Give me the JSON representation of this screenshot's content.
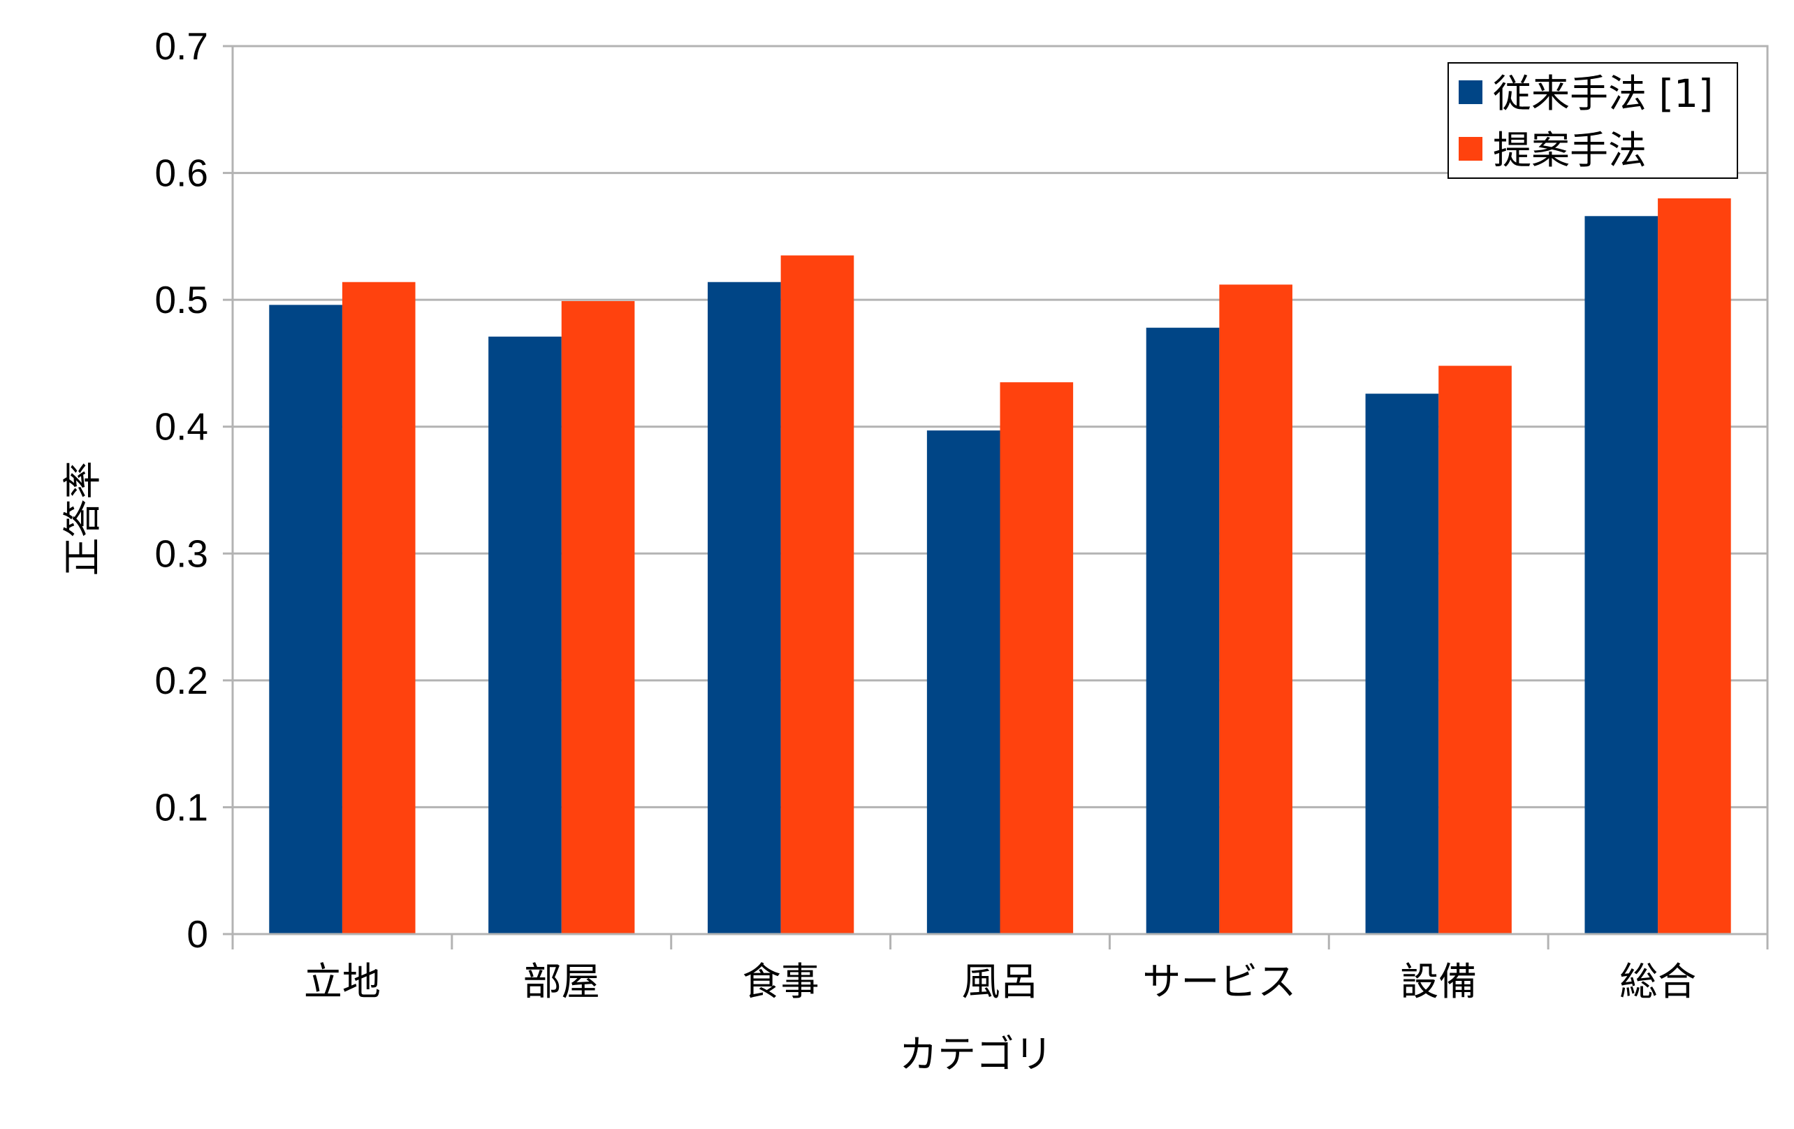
{
  "chart_data": {
    "type": "bar",
    "title": "",
    "xlabel": "カテゴリ",
    "ylabel": "正答率",
    "categories": [
      "立地",
      "部屋",
      "食事",
      "風呂",
      "サービス",
      "設備",
      "総合"
    ],
    "series": [
      {
        "name": "従来手法 [1]",
        "color": "#004586",
        "values": [
          0.496,
          0.471,
          0.514,
          0.397,
          0.478,
          0.426,
          0.566
        ]
      },
      {
        "name": "提案手法",
        "color": "#ff420e",
        "values": [
          0.514,
          0.499,
          0.535,
          0.435,
          0.512,
          0.448,
          0.58
        ]
      }
    ],
    "ylim": [
      0,
      0.7
    ],
    "yticks": [
      "0",
      "0.1",
      "0.2",
      "0.3",
      "0.4",
      "0.5",
      "0.6",
      "0.7"
    ],
    "grid": true,
    "legend_position": "top-right"
  }
}
